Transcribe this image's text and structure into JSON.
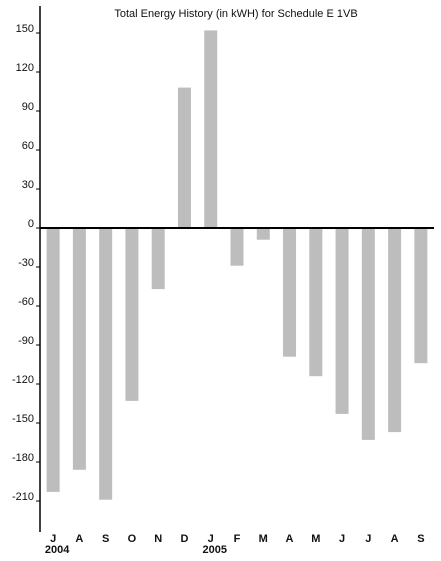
{
  "chart_data": {
    "type": "bar",
    "title": "Total Energy History (in kWH) for Schedule E  1VB",
    "categories": [
      "J",
      "A",
      "S",
      "O",
      "N",
      "D",
      "J",
      "F",
      "M",
      "A",
      "M",
      "J",
      "J",
      "A",
      "S"
    ],
    "years": [
      "2004",
      null,
      null,
      null,
      null,
      null,
      "2005",
      null,
      null,
      null,
      null,
      null,
      null,
      null,
      null
    ],
    "values": [
      -203,
      -186,
      -209,
      -133,
      -47,
      108,
      152,
      -29,
      -9,
      -99,
      -114,
      -143,
      -163,
      -157,
      -104
    ],
    "color": "#bdbdbd",
    "ylim": [
      -232,
      168
    ],
    "yticks": [
      150,
      120,
      90,
      60,
      30,
      0,
      -30,
      -60,
      -90,
      -120,
      -150,
      -180,
      -210
    ]
  }
}
